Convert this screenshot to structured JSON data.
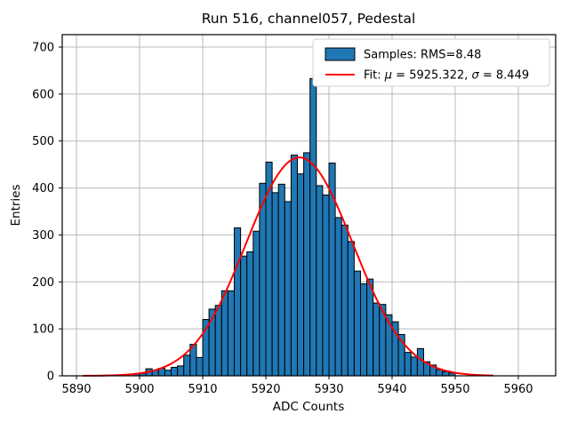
{
  "figure_title": "Run 516, channel057, Pedestal",
  "colors": {
    "bar_fill": "#1f77b4",
    "bar_edge": "#000000",
    "fit_line": "#ff0000",
    "grid": "#b8b8b8",
    "spine": "#000000",
    "legend_border": "#d0d0d0",
    "legend_bg": "#ffffff"
  },
  "chart_data": {
    "type": "bar",
    "subtype": "histogram",
    "title": "Run 516, channel057, Pedestal",
    "xlabel": "ADC Counts",
    "ylabel": "Entries",
    "xlim": [
      5887.7,
      5965.9
    ],
    "ylim": [
      0,
      727
    ],
    "grid": true,
    "xticks": [
      5890,
      5900,
      5910,
      5920,
      5930,
      5940,
      5950,
      5960
    ],
    "yticks": [
      0,
      100,
      200,
      300,
      400,
      500,
      600,
      700
    ],
    "histogram": {
      "bin_width": 1,
      "bin_left_edges_start": 5899,
      "counts": [
        4,
        6,
        15,
        12,
        16,
        12,
        18,
        21,
        44,
        67,
        39,
        120,
        142,
        150,
        181,
        181,
        315,
        255,
        264,
        308,
        410,
        455,
        390,
        408,
        371,
        470,
        430,
        475,
        633,
        405,
        385,
        453,
        337,
        321,
        286,
        223,
        196,
        206,
        155,
        152,
        130,
        115,
        88,
        50,
        40,
        58,
        30,
        23,
        13,
        9,
        6
      ]
    },
    "fit": {
      "type": "gaussian",
      "mu": 5925.322,
      "sigma": 8.449,
      "amplitude": 465,
      "x_range": [
        5891,
        5956
      ]
    },
    "legend": {
      "position": "upper right",
      "entries": [
        {
          "swatch": "patch",
          "parts": [
            {
              "t": "Samples: RMS=8.48",
              "italic": false
            }
          ]
        },
        {
          "swatch": "line",
          "parts": [
            {
              "t": "Fit: ",
              "italic": false
            },
            {
              "t": "μ",
              "italic": true
            },
            {
              "t": " = 5925.322, ",
              "italic": false
            },
            {
              "t": "σ",
              "italic": true
            },
            {
              "t": " = 8.449",
              "italic": false
            }
          ]
        }
      ]
    }
  }
}
